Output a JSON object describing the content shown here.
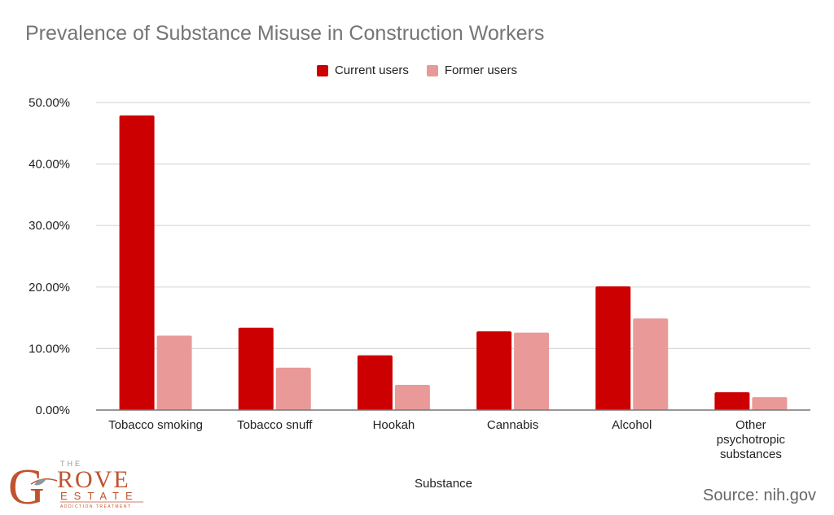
{
  "chart_data": {
    "type": "bar",
    "title": "Prevalence of Substance Misuse in Construction Workers",
    "xlabel": "Substance",
    "ylabel": "",
    "categories": [
      "Tobacco smoking",
      "Tobacco snuff",
      "Hookah",
      "Cannabis",
      "Alcohol",
      "Other psychotropic substances"
    ],
    "series": [
      {
        "name": "Current users",
        "color": "#cc0000",
        "values": [
          47.9,
          13.4,
          8.9,
          12.8,
          20.1,
          2.9
        ]
      },
      {
        "name": "Former users",
        "color": "#ea9999",
        "values": [
          12.1,
          6.9,
          4.1,
          12.6,
          14.9,
          2.1
        ]
      }
    ],
    "ylim": [
      0,
      50
    ],
    "yticks": [
      "0.00%",
      "10.00%",
      "20.00%",
      "30.00%",
      "40.00%",
      "50.00%"
    ],
    "grid": true,
    "legend_position": "top"
  },
  "source": "Source: nih.gov",
  "logo": {
    "text": "THE GROVE ESTATE ADDICTION TREATMENT",
    "color": "#c0532f"
  }
}
